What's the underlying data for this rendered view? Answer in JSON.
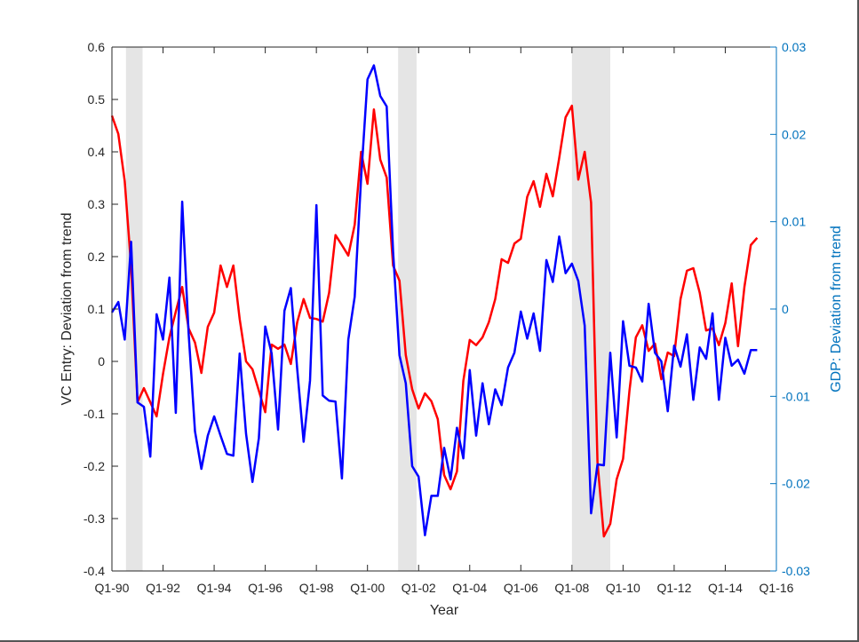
{
  "chart_data": {
    "type": "line",
    "title": "",
    "xlabel": "Year",
    "ylabel_left": "VC Entry: Deviation from trend",
    "ylabel_right": "GDP: Deviation from trend",
    "x_start_year": 1990,
    "x_step_years": 0.25,
    "xlim": [
      1990,
      2016
    ],
    "ylim_left": [
      -0.4,
      0.6
    ],
    "ylim_right": [
      -0.03,
      0.03
    ],
    "x_ticks": [
      1990,
      1992,
      1994,
      1996,
      1998,
      2000,
      2002,
      2004,
      2006,
      2008,
      2010,
      2012,
      2014,
      2016
    ],
    "x_tick_labels": [
      "Q1-90",
      "Q1-92",
      "Q1-94",
      "Q1-96",
      "Q1-98",
      "Q1-00",
      "Q1-02",
      "Q1-04",
      "Q1-06",
      "Q1-08",
      "Q1-10",
      "Q1-12",
      "Q1-14",
      "Q1-16"
    ],
    "y_ticks_left": [
      0.6,
      0.5,
      0.4,
      0.3,
      0.2,
      0.1,
      0,
      -0.1,
      -0.2,
      -0.3,
      -0.4
    ],
    "y_tick_labels_left": [
      "0.6",
      "0.5",
      "0.4",
      "0.3",
      "0.2",
      "0.1",
      "0",
      "-0.1",
      "-0.2",
      "-0.3",
      "-0.4"
    ],
    "y_ticks_right": [
      0.03,
      0.02,
      0.01,
      0,
      -0.01,
      -0.02,
      -0.03
    ],
    "y_tick_labels_right": [
      "0.03",
      "0.02",
      "0.01",
      "0",
      "-0.01",
      "-0.02",
      "-0.03"
    ],
    "grid": false,
    "recessions": [
      {
        "start": 1990.55,
        "end": 1991.2
      },
      {
        "start": 2001.2,
        "end": 2001.92
      },
      {
        "start": 2008.0,
        "end": 2009.5
      }
    ],
    "series": [
      {
        "name": "VC Entry",
        "axis": "left",
        "color": "#ff0000",
        "values": [
          0.469,
          0.434,
          0.344,
          0.181,
          -0.078,
          -0.051,
          -0.078,
          -0.105,
          -0.024,
          0.046,
          0.095,
          0.142,
          0.063,
          0.036,
          -0.022,
          0.066,
          0.093,
          0.183,
          0.142,
          0.183,
          0.081,
          0.0,
          -0.015,
          -0.056,
          -0.097,
          0.032,
          0.024,
          0.032,
          -0.005,
          0.075,
          0.119,
          0.083,
          0.081,
          0.076,
          0.131,
          0.241,
          0.222,
          0.202,
          0.261,
          0.4,
          0.339,
          0.481,
          0.385,
          0.351,
          0.183,
          0.154,
          0.012,
          -0.053,
          -0.09,
          -0.061,
          -0.076,
          -0.11,
          -0.217,
          -0.244,
          -0.21,
          -0.037,
          0.041,
          0.031,
          0.046,
          0.075,
          0.119,
          0.195,
          0.188,
          0.225,
          0.234,
          0.314,
          0.344,
          0.295,
          0.358,
          0.315,
          0.388,
          0.466,
          0.488,
          0.347,
          0.4,
          0.303,
          -0.192,
          -0.334,
          -0.31,
          -0.225,
          -0.186,
          -0.056,
          0.046,
          0.069,
          0.02,
          0.034,
          -0.034,
          0.017,
          0.01,
          0.119,
          0.173,
          0.178,
          0.131,
          0.059,
          0.063,
          0.031,
          0.073,
          0.149,
          0.029,
          0.142,
          0.222,
          0.236
        ]
      },
      {
        "name": "GDP",
        "axis": "right",
        "color": "#0000ff",
        "values": [
          -0.0004,
          0.0008,
          -0.0035,
          0.0077,
          -0.0107,
          -0.0112,
          -0.0169,
          -0.0006,
          -0.0035,
          0.0036,
          -0.0119,
          0.0123,
          -0.0027,
          -0.014,
          -0.0183,
          -0.0145,
          -0.0123,
          -0.0145,
          -0.0166,
          -0.0168,
          -0.0051,
          -0.0143,
          -0.0198,
          -0.0148,
          -0.002,
          -0.0051,
          -0.0138,
          -0.0002,
          0.0024,
          -0.0069,
          -0.0152,
          -0.0082,
          0.0119,
          -0.0099,
          -0.0105,
          -0.0106,
          -0.0194,
          -0.0035,
          0.0014,
          0.015,
          0.0263,
          0.0279,
          0.0244,
          0.0232,
          0.0066,
          -0.0053,
          -0.0085,
          -0.018,
          -0.0192,
          -0.0259,
          -0.0214,
          -0.0214,
          -0.0159,
          -0.0195,
          -0.0136,
          -0.0171,
          -0.007,
          -0.0145,
          -0.0085,
          -0.0132,
          -0.0092,
          -0.011,
          -0.0067,
          -0.005,
          -0.0003,
          -0.0034,
          -0.0005,
          -0.0048,
          0.0056,
          0.0031,
          0.0083,
          0.0041,
          0.0052,
          0.0032,
          -0.0019,
          -0.0234,
          -0.0178,
          -0.0179,
          -0.005,
          -0.0147,
          -0.0014,
          -0.0065,
          -0.0067,
          -0.0083,
          0.0006,
          -0.005,
          -0.006,
          -0.0117,
          -0.0042,
          -0.0066,
          -0.0029,
          -0.0104,
          -0.0044,
          -0.0057,
          -0.0005,
          -0.0104,
          -0.0033,
          -0.0065,
          -0.0058,
          -0.0074,
          -0.0047,
          -0.0047
        ]
      }
    ],
    "colors": {
      "left_axis": "#262626",
      "right_axis": "#0072bd",
      "recession_band": "#e5e5e5"
    }
  }
}
